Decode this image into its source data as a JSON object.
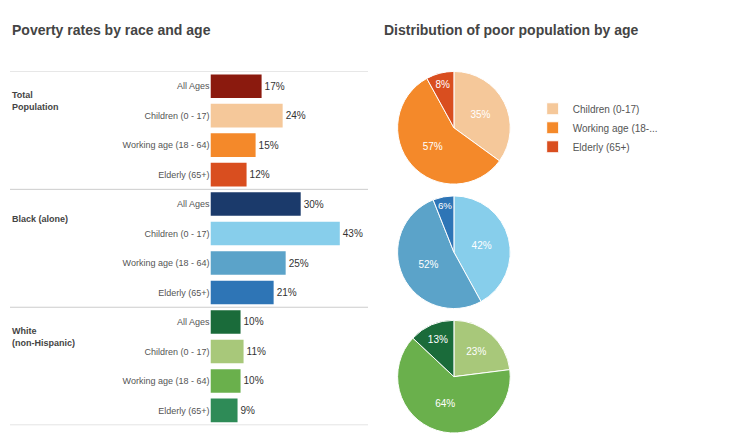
{
  "chart_data": [
    {
      "type": "bar",
      "orientation": "horizontal",
      "title": "Poverty rates by race and age",
      "categories": [
        "All Ages",
        "Children (0 - 17)",
        "Working age (18 - 64)",
        "Elderly (65+)",
        "All Ages",
        "Children (0 - 17)",
        "Working age (18 - 64)",
        "Elderly (65+)",
        "All Ages",
        "Children (0 - 17)",
        "Working age (18 - 64)",
        "Elderly (65+)"
      ],
      "values": [
        17,
        24,
        15,
        12,
        30,
        43,
        25,
        21,
        10,
        11,
        10,
        9
      ],
      "colors": [
        "#8B1A0E",
        "#F5C89A",
        "#F4892A",
        "#D94E1F",
        "#1B3A6B",
        "#87CEEB",
        "#5BA3C9",
        "#2E75B6",
        "#1A6B3A",
        "#A8C87A",
        "#6AB04C",
        "#2E8B57"
      ],
      "data_labels": true,
      "value_labels": [
        "17%",
        "24%",
        "15%",
        "12%",
        "30%",
        "43%",
        "25%",
        "21%",
        "10%",
        "11%",
        "10%",
        "9%"
      ],
      "annotations": [
        {
          "text": "Total\nPopulation",
          "index": 0
        },
        {
          "text": "Black (alone)",
          "index": 4
        },
        {
          "text": "White\n(non-Hispanic)",
          "index": 8
        }
      ],
      "xlim": [
        0,
        50
      ],
      "tick_labels": "y",
      "grid": false
    },
    {
      "type": "pie",
      "title": "Distribution of poor population by age",
      "categories": [
        "Children (0-17)",
        "Working age (18-...",
        "Elderly (65+)"
      ],
      "values": [
        35,
        57,
        8
      ],
      "colors": [
        "#F5C89A",
        "#F4892A",
        "#D94E1F"
      ],
      "data_labels": true,
      "value_labels": [
        "35%",
        "57%",
        "8%"
      ],
      "legend": "right"
    },
    {
      "type": "pie",
      "categories": [
        "Children (0-17)",
        "Working age (18-...",
        "Elderly (65+)"
      ],
      "values": [
        42,
        52,
        6
      ],
      "colors": [
        "#87CEEB",
        "#5BA3C9",
        "#2E75B6"
      ],
      "data_labels": true,
      "value_labels": [
        "42%",
        "52%",
        "6%"
      ],
      "legend": "right"
    },
    {
      "type": "pie",
      "categories": [
        "Children (0-17)",
        "Working age (18-...",
        "Elderly (65+)"
      ],
      "values": [
        23,
        64,
        13
      ],
      "colors": [
        "#A8C87A",
        "#6AB04C",
        "#1A6B3A"
      ],
      "data_labels": true,
      "value_labels": [
        "23%",
        "64%",
        "13%"
      ],
      "legend": "right"
    }
  ]
}
